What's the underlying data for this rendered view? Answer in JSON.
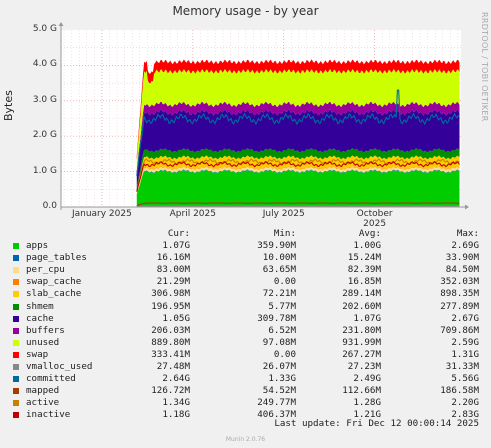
{
  "colors": {
    "background": "#f0f0f0",
    "plot_background": "#ffffff",
    "grid_major": "#e09090",
    "grid_minor": "#e8c8c8",
    "axis": "#999999",
    "series": {
      "apps": "#00cc00",
      "page_tables": "#0066b3",
      "per_cpu": "#ffdd88",
      "swap_cache": "#ff8000",
      "slab_cache": "#ffcc00",
      "shmem": "#008f00",
      "cache": "#330099",
      "buffers": "#990099",
      "unused": "#ccff00",
      "swap": "#ff0000",
      "vmalloc_used": "#888888",
      "committed": "#006b9c",
      "mapped": "#a63d00",
      "active": "#c68000",
      "inactive": "#c00000"
    }
  },
  "chart_data": {
    "type": "area",
    "title": "Memory usage - by year",
    "ylabel": "Bytes",
    "xlabel": "",
    "watermark": "RRDTOOL / TOBI OETIKER",
    "ylim": [
      0,
      5
    ],
    "yunit": "G",
    "yticks": [
      "0.0",
      "1.0 G",
      "2.0 G",
      "3.0 G",
      "4.0 G",
      "5.0 G"
    ],
    "ytick_values": [
      0,
      1,
      2,
      3,
      4,
      5
    ],
    "xlim_months": [
      -1.35,
      11.85
    ],
    "data_start_month": 1.15,
    "xticks": [
      {
        "label": "January 2025",
        "month": 0
      },
      {
        "label": "April 2025",
        "month": 3
      },
      {
        "label": "July 2025",
        "month": 6
      },
      {
        "label": "October 2025",
        "month": 9
      }
    ],
    "grid": true,
    "stack_order": [
      "apps",
      "page_tables",
      "per_cpu",
      "swap_cache",
      "slab_cache",
      "shmem",
      "cache",
      "buffers",
      "unused",
      "swap"
    ],
    "stack_avg": {
      "apps": 1.0,
      "page_tables": 0.015,
      "per_cpu": 0.08,
      "swap_cache": 0.016,
      "slab_cache": 0.29,
      "shmem": 0.2,
      "cache": 1.07,
      "buffers": 0.23,
      "unused": 0.93,
      "swap": 0.27
    },
    "line_order": [
      "vmalloc_used",
      "committed",
      "mapped",
      "active",
      "inactive"
    ],
    "line_avg": {
      "vmalloc_used": 0.027,
      "committed": 2.49,
      "mapped": 0.11,
      "active": 1.28,
      "inactive": 1.21
    },
    "columns": [
      "Cur:",
      "Min:",
      "Avg:",
      "Max:"
    ],
    "series": [
      {
        "name": "apps",
        "cur": "1.07G",
        "min": "359.90M",
        "avg": "1.00G",
        "max": "2.69G"
      },
      {
        "name": "page_tables",
        "cur": "16.16M",
        "min": "10.00M",
        "avg": "15.24M",
        "max": "33.90M"
      },
      {
        "name": "per_cpu",
        "cur": "83.00M",
        "min": "63.65M",
        "avg": "82.39M",
        "max": "84.50M"
      },
      {
        "name": "swap_cache",
        "cur": "21.29M",
        "min": "0.00",
        "avg": "16.85M",
        "max": "352.03M"
      },
      {
        "name": "slab_cache",
        "cur": "306.98M",
        "min": "72.21M",
        "avg": "289.14M",
        "max": "898.35M"
      },
      {
        "name": "shmem",
        "cur": "196.95M",
        "min": "5.77M",
        "avg": "202.60M",
        "max": "277.89M"
      },
      {
        "name": "cache",
        "cur": "1.05G",
        "min": "309.78M",
        "avg": "1.07G",
        "max": "2.67G"
      },
      {
        "name": "buffers",
        "cur": "206.03M",
        "min": "6.52M",
        "avg": "231.80M",
        "max": "709.86M"
      },
      {
        "name": "unused",
        "cur": "889.80M",
        "min": "97.08M",
        "avg": "931.99M",
        "max": "2.59G"
      },
      {
        "name": "swap",
        "cur": "333.41M",
        "min": "0.00",
        "avg": "267.27M",
        "max": "1.31G"
      },
      {
        "name": "vmalloc_used",
        "cur": "27.48M",
        "min": "26.07M",
        "avg": "27.23M",
        "max": "31.33M"
      },
      {
        "name": "committed",
        "cur": "2.64G",
        "min": "1.33G",
        "avg": "2.49G",
        "max": "5.56G"
      },
      {
        "name": "mapped",
        "cur": "126.72M",
        "min": "54.52M",
        "avg": "112.66M",
        "max": "186.58M"
      },
      {
        "name": "active",
        "cur": "1.34G",
        "min": "249.77M",
        "avg": "1.28G",
        "max": "2.20G"
      },
      {
        "name": "inactive",
        "cur": "1.18G",
        "min": "406.37M",
        "avg": "1.21G",
        "max": "2.83G"
      }
    ],
    "last_update": "Last update: Fri Dec 12 00:00:14 2025",
    "footer": "Munin 2.0.76"
  }
}
